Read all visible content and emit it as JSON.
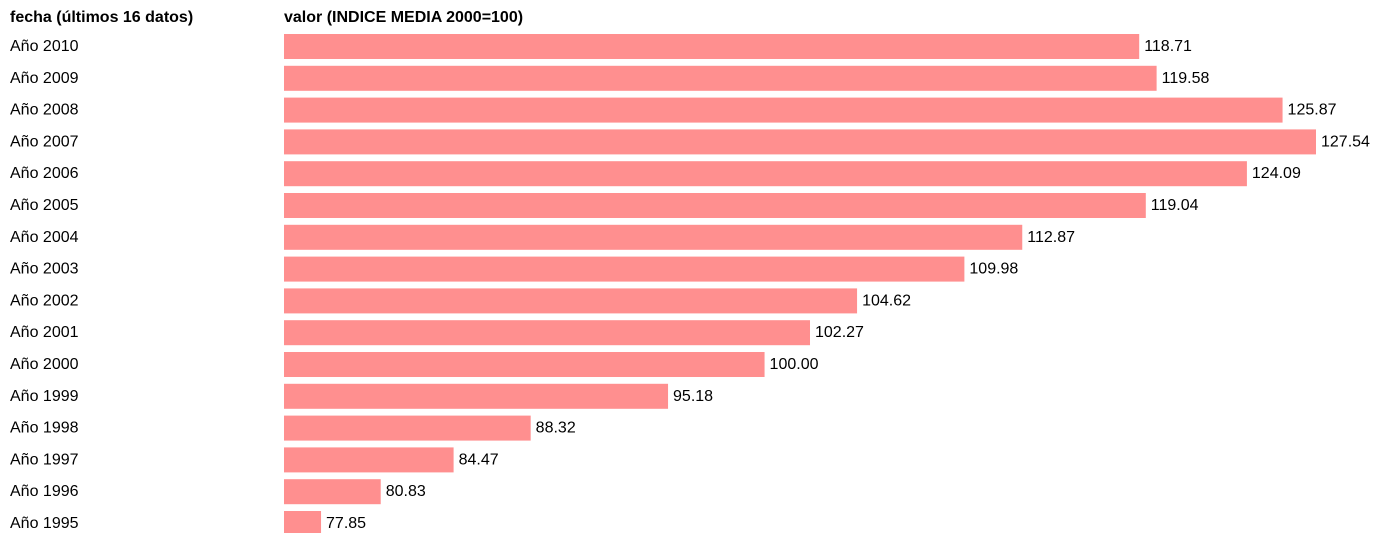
{
  "chart_data": {
    "type": "bar",
    "orientation": "horizontal",
    "column_headers": {
      "category": "fecha (últimos 16 datos)",
      "value": "valor (INDICE MEDIA 2000=100)"
    },
    "categories": [
      "Año 2010",
      "Año 2009",
      "Año 2008",
      "Año 2007",
      "Año 2006",
      "Año 2005",
      "Año 2004",
      "Año 2003",
      "Año 2002",
      "Año 2001",
      "Año 2000",
      "Año 1999",
      "Año 1998",
      "Año 1997",
      "Año 1996",
      "Año 1995"
    ],
    "values": [
      118.71,
      119.58,
      125.87,
      127.54,
      124.09,
      119.04,
      112.87,
      109.98,
      104.62,
      102.27,
      100.0,
      95.18,
      88.32,
      84.47,
      80.83,
      77.85
    ],
    "value_labels": [
      "118.71",
      "119.58",
      "125.87",
      "127.54",
      "124.09",
      "119.04",
      "112.87",
      "109.98",
      "104.62",
      "102.27",
      "100.00",
      "95.18",
      "88.32",
      "84.47",
      "80.83",
      "77.85"
    ],
    "xlim": [
      76,
      127.54
    ],
    "grid": false,
    "legend": "none",
    "bar_color": "#ff8f8f"
  }
}
